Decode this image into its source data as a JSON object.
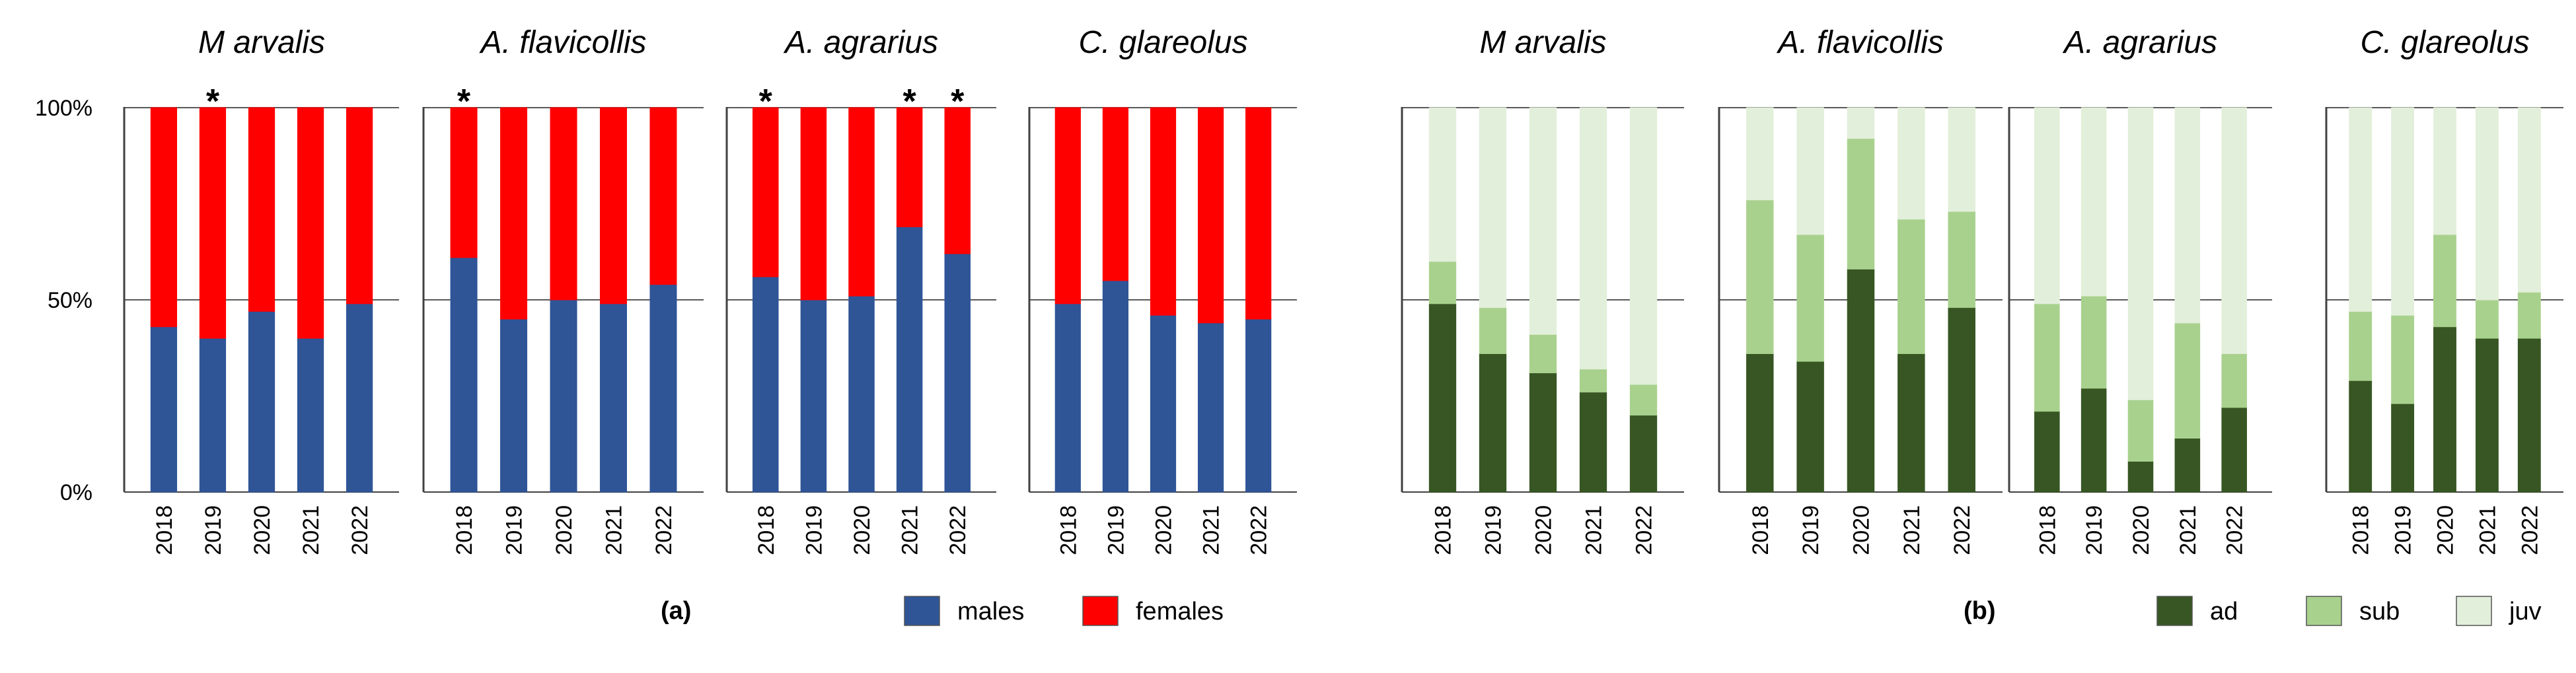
{
  "chart_data": [
    {
      "type": "stacked-bar",
      "panel": "a",
      "panel_label": "(a)",
      "ylabel_ticks": [
        "0%",
        "50%",
        "100%"
      ],
      "ylim": [
        0,
        100
      ],
      "categories": [
        "2018",
        "2019",
        "2020",
        "2021",
        "2022"
      ],
      "series_def": [
        {
          "key": "males",
          "name": "males",
          "color": "#2f5597"
        },
        {
          "key": "females",
          "name": "females",
          "color": "#ff0000"
        }
      ],
      "legend": [
        {
          "name": "males",
          "color": "#2f5597"
        },
        {
          "name": "females",
          "color": "#ff0000"
        }
      ],
      "subplots": [
        {
          "title": "M arvalis",
          "stars": [
            "",
            "*",
            "",
            "",
            ""
          ],
          "series": [
            {
              "name": "males",
              "values": [
                43,
                40,
                47,
                40,
                49
              ]
            },
            {
              "name": "females",
              "values": [
                57,
                60,
                53,
                60,
                51
              ]
            }
          ]
        },
        {
          "title": "A. flavicollis",
          "stars": [
            "*",
            "",
            "",
            "",
            ""
          ],
          "series": [
            {
              "name": "males",
              "values": [
                61,
                45,
                50,
                49,
                54
              ]
            },
            {
              "name": "females",
              "values": [
                39,
                55,
                50,
                51,
                46
              ]
            }
          ]
        },
        {
          "title": "A. agrarius",
          "stars": [
            "*",
            "",
            "",
            "*",
            "*"
          ],
          "series": [
            {
              "name": "males",
              "values": [
                56,
                50,
                51,
                69,
                62
              ]
            },
            {
              "name": "females",
              "values": [
                44,
                50,
                49,
                31,
                38
              ]
            }
          ]
        },
        {
          "title": "C. glareolus",
          "stars": [
            "",
            "",
            "",
            "",
            ""
          ],
          "series": [
            {
              "name": "males",
              "values": [
                49,
                55,
                46,
                44,
                45
              ]
            },
            {
              "name": "females",
              "values": [
                51,
                45,
                54,
                56,
                55
              ]
            }
          ]
        }
      ]
    },
    {
      "type": "stacked-bar",
      "panel": "b",
      "panel_label": "(b)",
      "ylim": [
        0,
        100
      ],
      "categories": [
        "2018",
        "2019",
        "2020",
        "2021",
        "2022"
      ],
      "series_def": [
        {
          "key": "ad",
          "name": "ad",
          "color": "#375623"
        },
        {
          "key": "sub",
          "name": "sub",
          "color": "#a9d18e"
        },
        {
          "key": "juv",
          "name": "juv",
          "color": "#e2efda"
        }
      ],
      "legend": [
        {
          "name": "ad",
          "color": "#375623"
        },
        {
          "name": "sub",
          "color": "#a9d18e"
        },
        {
          "name": "juv",
          "color": "#e2efda"
        }
      ],
      "subplots": [
        {
          "title": "M arvalis",
          "series": [
            {
              "name": "ad",
              "values": [
                49,
                36,
                31,
                26,
                20
              ]
            },
            {
              "name": "sub",
              "values": [
                11,
                12,
                10,
                6,
                8
              ]
            },
            {
              "name": "juv",
              "values": [
                40,
                52,
                59,
                68,
                72
              ]
            }
          ]
        },
        {
          "title": "A. flavicollis",
          "series": [
            {
              "name": "ad",
              "values": [
                36,
                34,
                58,
                36,
                48
              ]
            },
            {
              "name": "sub",
              "values": [
                40,
                33,
                34,
                35,
                25
              ]
            },
            {
              "name": "juv",
              "values": [
                24,
                33,
                8,
                29,
                27
              ]
            }
          ]
        },
        {
          "title": "A. agrarius",
          "series": [
            {
              "name": "ad",
              "values": [
                21,
                27,
                8,
                14,
                22
              ]
            },
            {
              "name": "sub",
              "values": [
                28,
                24,
                16,
                30,
                14
              ]
            },
            {
              "name": "juv",
              "values": [
                51,
                49,
                76,
                56,
                64
              ]
            }
          ]
        },
        {
          "title": "C. glareolus",
          "series": [
            {
              "name": "ad",
              "values": [
                29,
                23,
                43,
                40,
                40
              ]
            },
            {
              "name": "sub",
              "values": [
                18,
                23,
                24,
                10,
                12
              ]
            },
            {
              "name": "juv",
              "values": [
                53,
                54,
                33,
                50,
                48
              ]
            }
          ]
        }
      ]
    }
  ]
}
